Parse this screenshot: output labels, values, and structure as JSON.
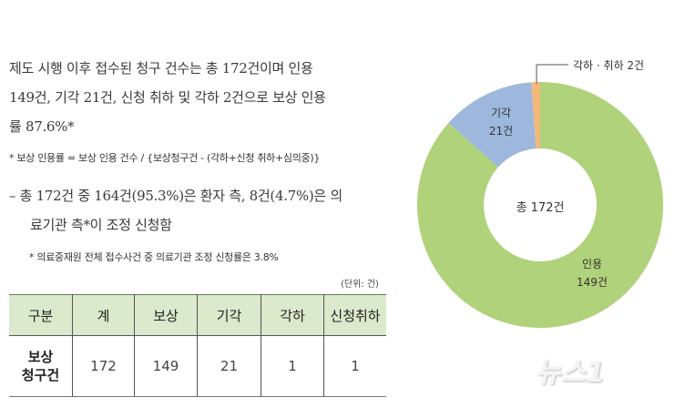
{
  "summary": {
    "line1": "제도 시행 이후 접수된 청구 건수는 총 172건이며 인용",
    "line2": "149건, 기각 21건, 신청 취하 및 각하 2건으로 보상 인용",
    "line3": "률 87.6%*",
    "footnote": "* 보상 인용률 = 보상 인용 건수 / {보상청구건 - (각하+신청 취하+심의중)}"
  },
  "detail": {
    "dash": "–",
    "line1": "총 172건 중 164건(95.3%)은 환자 측, 8건(4.7%)은 의",
    "line2": "료기관 측*이 조정 신청함",
    "footnote": "* 의료중재원 전체 접수사건 중 의료기관 조정 신청률은 3.8%"
  },
  "table": {
    "unit": "(단위: 건)",
    "headers": [
      "구분",
      "계",
      "보상",
      "기각",
      "각하",
      "신청취하"
    ],
    "rows": [
      {
        "label_line1": "보상",
        "label_line2": "청구건",
        "values": [
          "172",
          "149",
          "21",
          "1",
          "1"
        ]
      }
    ]
  },
  "chart_data": {
    "type": "pie",
    "subtype": "donut",
    "title": "",
    "center_label": "총 172건",
    "categories": [
      "인용",
      "기각",
      "각하 · 취하"
    ],
    "values": [
      149,
      21,
      2
    ],
    "labels": [
      "인용\n149건",
      "기각\n21건",
      "각하 · 취하 2건"
    ],
    "colors": [
      "#b0d27a",
      "#9db8dc",
      "#f2b77a"
    ],
    "total": 172,
    "legend": "none",
    "start_angle": "12 o'clock, clockwise"
  },
  "chart_text": {
    "center": "총 172건",
    "slice1_name": "인용",
    "slice1_value": "149건",
    "slice2_name": "기각",
    "slice2_value": "21건",
    "slice3_label": "각하 · 취하 2건"
  },
  "watermark": {
    "text": "뉴스1"
  }
}
